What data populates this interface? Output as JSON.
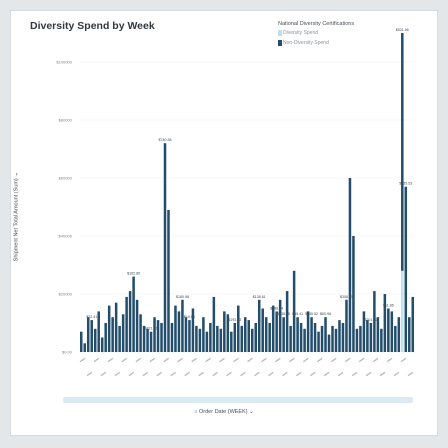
{
  "chart_data": {
    "type": "bar",
    "title": "Diversity Spend by Week",
    "ylabel": "Shipment Net Total Amount (Sum)",
    "xlabel": "Order Date (WEEK)",
    "ylim": [
      0,
      100000
    ],
    "yticks": [
      0,
      20000,
      40000,
      60000,
      80000,
      100000
    ],
    "ytick_labels": [
      "$0.00",
      "$20000",
      "$40000",
      "$60000",
      "$80000",
      "$100000"
    ],
    "legend": {
      "title": "National Diversity Certifications",
      "position": "top-right",
      "entries": [
        {
          "name": "Diversity Spend",
          "color": "#bfe0ef"
        },
        {
          "name": "Non-Diversity Spend",
          "color": "#234e6b"
        }
      ]
    },
    "series": [
      {
        "name": "Non-Diversity Spend",
        "color": "#234e6b",
        "values": [
          7000,
          3000,
          12000,
          11000,
          8000,
          14000,
          5000,
          10000,
          16000,
          12000,
          17000,
          9000,
          13000,
          19000,
          21000,
          26000,
          18000,
          13000,
          9000,
          8000,
          7000,
          12000,
          11000,
          10000,
          72000,
          49000,
          10000,
          16000,
          14000,
          18000,
          12000,
          11000,
          15000,
          9000,
          8000,
          12000,
          7000,
          10000,
          19000,
          9000,
          8000,
          14000,
          13000,
          7000,
          10000,
          16000,
          9000,
          12000,
          11000,
          8000,
          10000,
          18000,
          15000,
          12000,
          10000,
          16000,
          14000,
          18000,
          12000,
          21000,
          9000,
          28000,
          12000,
          10000,
          8000,
          14000,
          12000,
          10000,
          7000,
          9000,
          12000,
          6000,
          9000,
          8000,
          11000,
          10000,
          18000,
          60000,
          40000,
          8000,
          9000,
          14000,
          11000,
          10000,
          21000,
          12000,
          8000,
          20000,
          15000,
          14000,
          9000,
          12000,
          82000,
          57000,
          12000,
          19000
        ]
      },
      {
        "name": "Diversity Spend",
        "color": "#bfe0ef",
        "values": [
          0,
          0,
          0,
          0,
          0,
          0,
          0,
          0,
          0,
          0,
          0,
          0,
          0,
          0,
          0,
          0,
          0,
          0,
          0,
          0,
          0,
          0,
          0,
          0,
          0,
          0,
          0,
          0,
          0,
          0,
          0,
          0,
          0,
          0,
          0,
          0,
          0,
          0,
          0,
          0,
          0,
          0,
          0,
          0,
          0,
          0,
          0,
          0,
          0,
          0,
          0,
          0,
          0,
          0,
          0,
          0,
          0,
          0,
          0,
          0,
          0,
          0,
          0,
          0,
          0,
          0,
          0,
          0,
          0,
          0,
          0,
          0,
          0,
          0,
          0,
          0,
          0,
          0,
          0,
          0,
          0,
          0,
          0,
          0,
          0,
          0,
          0,
          0,
          0,
          0,
          0,
          0,
          28000,
          0,
          0,
          0
        ]
      }
    ],
    "bar_labels": [
      {
        "index": 3,
        "text": "$22.41"
      },
      {
        "index": 20,
        "text": "$321.21"
      },
      {
        "index": 15,
        "text": "$162.85"
      },
      {
        "index": 24,
        "text": "$740.38"
      },
      {
        "index": 29,
        "text": "$180.98"
      },
      {
        "index": 31,
        "text": "$15.05"
      },
      {
        "index": 44,
        "text": "$193.83"
      },
      {
        "index": 51,
        "text": "$138.61"
      },
      {
        "index": 56,
        "text": "$488.34"
      },
      {
        "index": 58,
        "text": "$238.66"
      },
      {
        "index": 62,
        "text": "$55.41"
      },
      {
        "index": 66,
        "text": "$235.52"
      },
      {
        "index": 70,
        "text": "$60.98"
      },
      {
        "index": 76,
        "text": "$308.95"
      },
      {
        "index": 83,
        "text": "$201.92"
      },
      {
        "index": 88,
        "text": "$11.86"
      },
      {
        "index": 92,
        "text": "$521.56"
      },
      {
        "index": 93,
        "text": "$335.53"
      }
    ]
  }
}
